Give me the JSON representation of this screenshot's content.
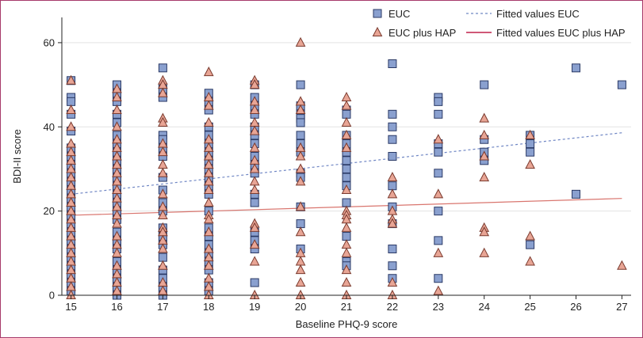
{
  "chart_data": {
    "type": "scatter",
    "xlabel": "Baseline PHQ-9 score",
    "ylabel": "BDI-II score",
    "xlim": [
      14.8,
      27.2
    ],
    "ylim": [
      0,
      66
    ],
    "xticks": [
      "15",
      "16",
      "17",
      "18",
      "19",
      "20",
      "21",
      "22",
      "23",
      "24",
      "25",
      "26",
      "27"
    ],
    "yticks": [
      "0",
      "20",
      "40",
      "60"
    ],
    "legend": {
      "placement": "top-right",
      "euc": "EUC",
      "hap": "EUC plus HAP",
      "fit_euc": "Fitted values EUC",
      "fit_hap": "Fitted values EUC plus HAP"
    },
    "colors": {
      "euc_fill": "#8aa0cf",
      "euc_stroke": "#2b3a66",
      "hap_fill": "#e8a595",
      "hap_stroke": "#7a3a2e",
      "fit_euc": "#6f86c4",
      "fit_hap": "#d9756e",
      "frame": "#a63a6a"
    },
    "series": [
      {
        "name": "EUC",
        "marker": "square",
        "points": [
          [
            15,
            51
          ],
          [
            15,
            47
          ],
          [
            15,
            46
          ],
          [
            15,
            43
          ],
          [
            15,
            39
          ],
          [
            15,
            35
          ],
          [
            15,
            33
          ],
          [
            15,
            31
          ],
          [
            15,
            29
          ],
          [
            15,
            27
          ],
          [
            15,
            25
          ],
          [
            15,
            23
          ],
          [
            15,
            21
          ],
          [
            15,
            19
          ],
          [
            15,
            17
          ],
          [
            15,
            15
          ],
          [
            15,
            13
          ],
          [
            15,
            11
          ],
          [
            15,
            9
          ],
          [
            15,
            7
          ],
          [
            15,
            5
          ],
          [
            15,
            3
          ],
          [
            15,
            1
          ],
          [
            16,
            50
          ],
          [
            16,
            48
          ],
          [
            16,
            46
          ],
          [
            16,
            43
          ],
          [
            16,
            41
          ],
          [
            16,
            38
          ],
          [
            16,
            36
          ],
          [
            16,
            34
          ],
          [
            16,
            32
          ],
          [
            16,
            30
          ],
          [
            16,
            28
          ],
          [
            16,
            26
          ],
          [
            16,
            24
          ],
          [
            16,
            22
          ],
          [
            16,
            20
          ],
          [
            16,
            18
          ],
          [
            16,
            15
          ],
          [
            16,
            13
          ],
          [
            16,
            11
          ],
          [
            16,
            8
          ],
          [
            16,
            6
          ],
          [
            16,
            4
          ],
          [
            16,
            2
          ],
          [
            16,
            0
          ],
          [
            17,
            54
          ],
          [
            17,
            49
          ],
          [
            17,
            47
          ],
          [
            17,
            38
          ],
          [
            17,
            37
          ],
          [
            17,
            35
          ],
          [
            17,
            33
          ],
          [
            17,
            28
          ],
          [
            17,
            25
          ],
          [
            17,
            22
          ],
          [
            17,
            20
          ],
          [
            17,
            16
          ],
          [
            17,
            14
          ],
          [
            17,
            12
          ],
          [
            17,
            9
          ],
          [
            17,
            6
          ],
          [
            17,
            4
          ],
          [
            17,
            2
          ],
          [
            17,
            0
          ],
          [
            18,
            48
          ],
          [
            18,
            46
          ],
          [
            18,
            44
          ],
          [
            18,
            40
          ],
          [
            18,
            38
          ],
          [
            18,
            36
          ],
          [
            18,
            34
          ],
          [
            18,
            32
          ],
          [
            18,
            30
          ],
          [
            18,
            28
          ],
          [
            18,
            26
          ],
          [
            18,
            24
          ],
          [
            18,
            20
          ],
          [
            18,
            16
          ],
          [
            18,
            14
          ],
          [
            18,
            12
          ],
          [
            18,
            10
          ],
          [
            18,
            8
          ],
          [
            18,
            6
          ],
          [
            18,
            3
          ],
          [
            18,
            1
          ],
          [
            19,
            50
          ],
          [
            19,
            47
          ],
          [
            19,
            45
          ],
          [
            19,
            43
          ],
          [
            19,
            40
          ],
          [
            19,
            38
          ],
          [
            19,
            36
          ],
          [
            19,
            33
          ],
          [
            19,
            31
          ],
          [
            19,
            29
          ],
          [
            19,
            24
          ],
          [
            19,
            22
          ],
          [
            19,
            15
          ],
          [
            19,
            13
          ],
          [
            19,
            11
          ],
          [
            19,
            3
          ],
          [
            20,
            50
          ],
          [
            20,
            45
          ],
          [
            20,
            43
          ],
          [
            20,
            42
          ],
          [
            20,
            41
          ],
          [
            20,
            38
          ],
          [
            20,
            36
          ],
          [
            20,
            34
          ],
          [
            20,
            29
          ],
          [
            20,
            28
          ],
          [
            20,
            21
          ],
          [
            20,
            17
          ],
          [
            20,
            11
          ],
          [
            21,
            44
          ],
          [
            21,
            43
          ],
          [
            21,
            38
          ],
          [
            21,
            36
          ],
          [
            21,
            34
          ],
          [
            21,
            32
          ],
          [
            21,
            30
          ],
          [
            21,
            28
          ],
          [
            21,
            26
          ],
          [
            21,
            22
          ],
          [
            21,
            14
          ],
          [
            21,
            8
          ],
          [
            21,
            7
          ],
          [
            22,
            55
          ],
          [
            22,
            43
          ],
          [
            22,
            40
          ],
          [
            22,
            37
          ],
          [
            22,
            33
          ],
          [
            22,
            26
          ],
          [
            22,
            21
          ],
          [
            22,
            17
          ],
          [
            22,
            11
          ],
          [
            22,
            7
          ],
          [
            22,
            4
          ],
          [
            23,
            47
          ],
          [
            23,
            46
          ],
          [
            23,
            43
          ],
          [
            23,
            36
          ],
          [
            23,
            34
          ],
          [
            23,
            29
          ],
          [
            23,
            20
          ],
          [
            23,
            13
          ],
          [
            23,
            4
          ],
          [
            24,
            50
          ],
          [
            24,
            37
          ],
          [
            24,
            34
          ],
          [
            24,
            32
          ],
          [
            25,
            38
          ],
          [
            25,
            36
          ],
          [
            25,
            34
          ],
          [
            25,
            12
          ],
          [
            26,
            54
          ],
          [
            26,
            24
          ],
          [
            27,
            50
          ]
        ]
      },
      {
        "name": "EUC plus HAP",
        "marker": "triangle",
        "points": [
          [
            15,
            51
          ],
          [
            15,
            44
          ],
          [
            15,
            40
          ],
          [
            15,
            36
          ],
          [
            15,
            34
          ],
          [
            15,
            32
          ],
          [
            15,
            30
          ],
          [
            15,
            28
          ],
          [
            15,
            26
          ],
          [
            15,
            24
          ],
          [
            15,
            22
          ],
          [
            15,
            20
          ],
          [
            15,
            18
          ],
          [
            15,
            16
          ],
          [
            15,
            14
          ],
          [
            15,
            12
          ],
          [
            15,
            10
          ],
          [
            15,
            8
          ],
          [
            15,
            6
          ],
          [
            15,
            4
          ],
          [
            15,
            2
          ],
          [
            15,
            0
          ],
          [
            16,
            49
          ],
          [
            16,
            47
          ],
          [
            16,
            44
          ],
          [
            16,
            40
          ],
          [
            16,
            37
          ],
          [
            16,
            35
          ],
          [
            16,
            33
          ],
          [
            16,
            31
          ],
          [
            16,
            29
          ],
          [
            16,
            27
          ],
          [
            16,
            25
          ],
          [
            16,
            23
          ],
          [
            16,
            21
          ],
          [
            16,
            19
          ],
          [
            16,
            17
          ],
          [
            16,
            14
          ],
          [
            16,
            12
          ],
          [
            16,
            10
          ],
          [
            16,
            7
          ],
          [
            16,
            5
          ],
          [
            16,
            3
          ],
          [
            16,
            1
          ],
          [
            17,
            51
          ],
          [
            17,
            50
          ],
          [
            17,
            48
          ],
          [
            17,
            42
          ],
          [
            17,
            41
          ],
          [
            17,
            36
          ],
          [
            17,
            34
          ],
          [
            17,
            31
          ],
          [
            17,
            29
          ],
          [
            17,
            24
          ],
          [
            17,
            21
          ],
          [
            17,
            19
          ],
          [
            17,
            16
          ],
          [
            17,
            15
          ],
          [
            17,
            13
          ],
          [
            17,
            11
          ],
          [
            17,
            7
          ],
          [
            17,
            3
          ],
          [
            17,
            1
          ],
          [
            18,
            53
          ],
          [
            18,
            47
          ],
          [
            18,
            45
          ],
          [
            18,
            41
          ],
          [
            18,
            37
          ],
          [
            18,
            35
          ],
          [
            18,
            33
          ],
          [
            18,
            31
          ],
          [
            18,
            29
          ],
          [
            18,
            27
          ],
          [
            18,
            25
          ],
          [
            18,
            22
          ],
          [
            18,
            19
          ],
          [
            18,
            18
          ],
          [
            18,
            15
          ],
          [
            18,
            11
          ],
          [
            18,
            9
          ],
          [
            18,
            7
          ],
          [
            18,
            4
          ],
          [
            18,
            2
          ],
          [
            18,
            0
          ],
          [
            19,
            51
          ],
          [
            19,
            50
          ],
          [
            19,
            46
          ],
          [
            19,
            44
          ],
          [
            19,
            41
          ],
          [
            19,
            39
          ],
          [
            19,
            35
          ],
          [
            19,
            32
          ],
          [
            19,
            30
          ],
          [
            19,
            27
          ],
          [
            19,
            25
          ],
          [
            19,
            17
          ],
          [
            19,
            16
          ],
          [
            19,
            12
          ],
          [
            19,
            8
          ],
          [
            19,
            0
          ],
          [
            20,
            60
          ],
          [
            20,
            46
          ],
          [
            20,
            44
          ],
          [
            20,
            35
          ],
          [
            20,
            33
          ],
          [
            20,
            30
          ],
          [
            20,
            27
          ],
          [
            20,
            21
          ],
          [
            20,
            15
          ],
          [
            20,
            10
          ],
          [
            20,
            8
          ],
          [
            20,
            6
          ],
          [
            20,
            3
          ],
          [
            20,
            0
          ],
          [
            21,
            47
          ],
          [
            21,
            45
          ],
          [
            21,
            41
          ],
          [
            21,
            38
          ],
          [
            21,
            35
          ],
          [
            21,
            25
          ],
          [
            21,
            20
          ],
          [
            21,
            19
          ],
          [
            21,
            18
          ],
          [
            21,
            16
          ],
          [
            21,
            12
          ],
          [
            21,
            10
          ],
          [
            21,
            6
          ],
          [
            21,
            3
          ],
          [
            21,
            0
          ],
          [
            22,
            28
          ],
          [
            22,
            24
          ],
          [
            22,
            20
          ],
          [
            22,
            18
          ],
          [
            22,
            17
          ],
          [
            22,
            3
          ],
          [
            22,
            0
          ],
          [
            23,
            37
          ],
          [
            23,
            24
          ],
          [
            23,
            10
          ],
          [
            23,
            1
          ],
          [
            24,
            42
          ],
          [
            24,
            38
          ],
          [
            24,
            33
          ],
          [
            24,
            28
          ],
          [
            24,
            16
          ],
          [
            24,
            15
          ],
          [
            24,
            10
          ],
          [
            25,
            38
          ],
          [
            25,
            31
          ],
          [
            25,
            14
          ],
          [
            25,
            8
          ],
          [
            27,
            7
          ]
        ]
      }
    ],
    "fitted_lines": [
      {
        "name": "Fitted values EUC",
        "x": [
          15,
          27
        ],
        "y": [
          24.0,
          38.6
        ]
      },
      {
        "name": "Fitted values EUC plus HAP",
        "x": [
          15,
          27
        ],
        "y": [
          19.0,
          23.0
        ]
      }
    ]
  }
}
